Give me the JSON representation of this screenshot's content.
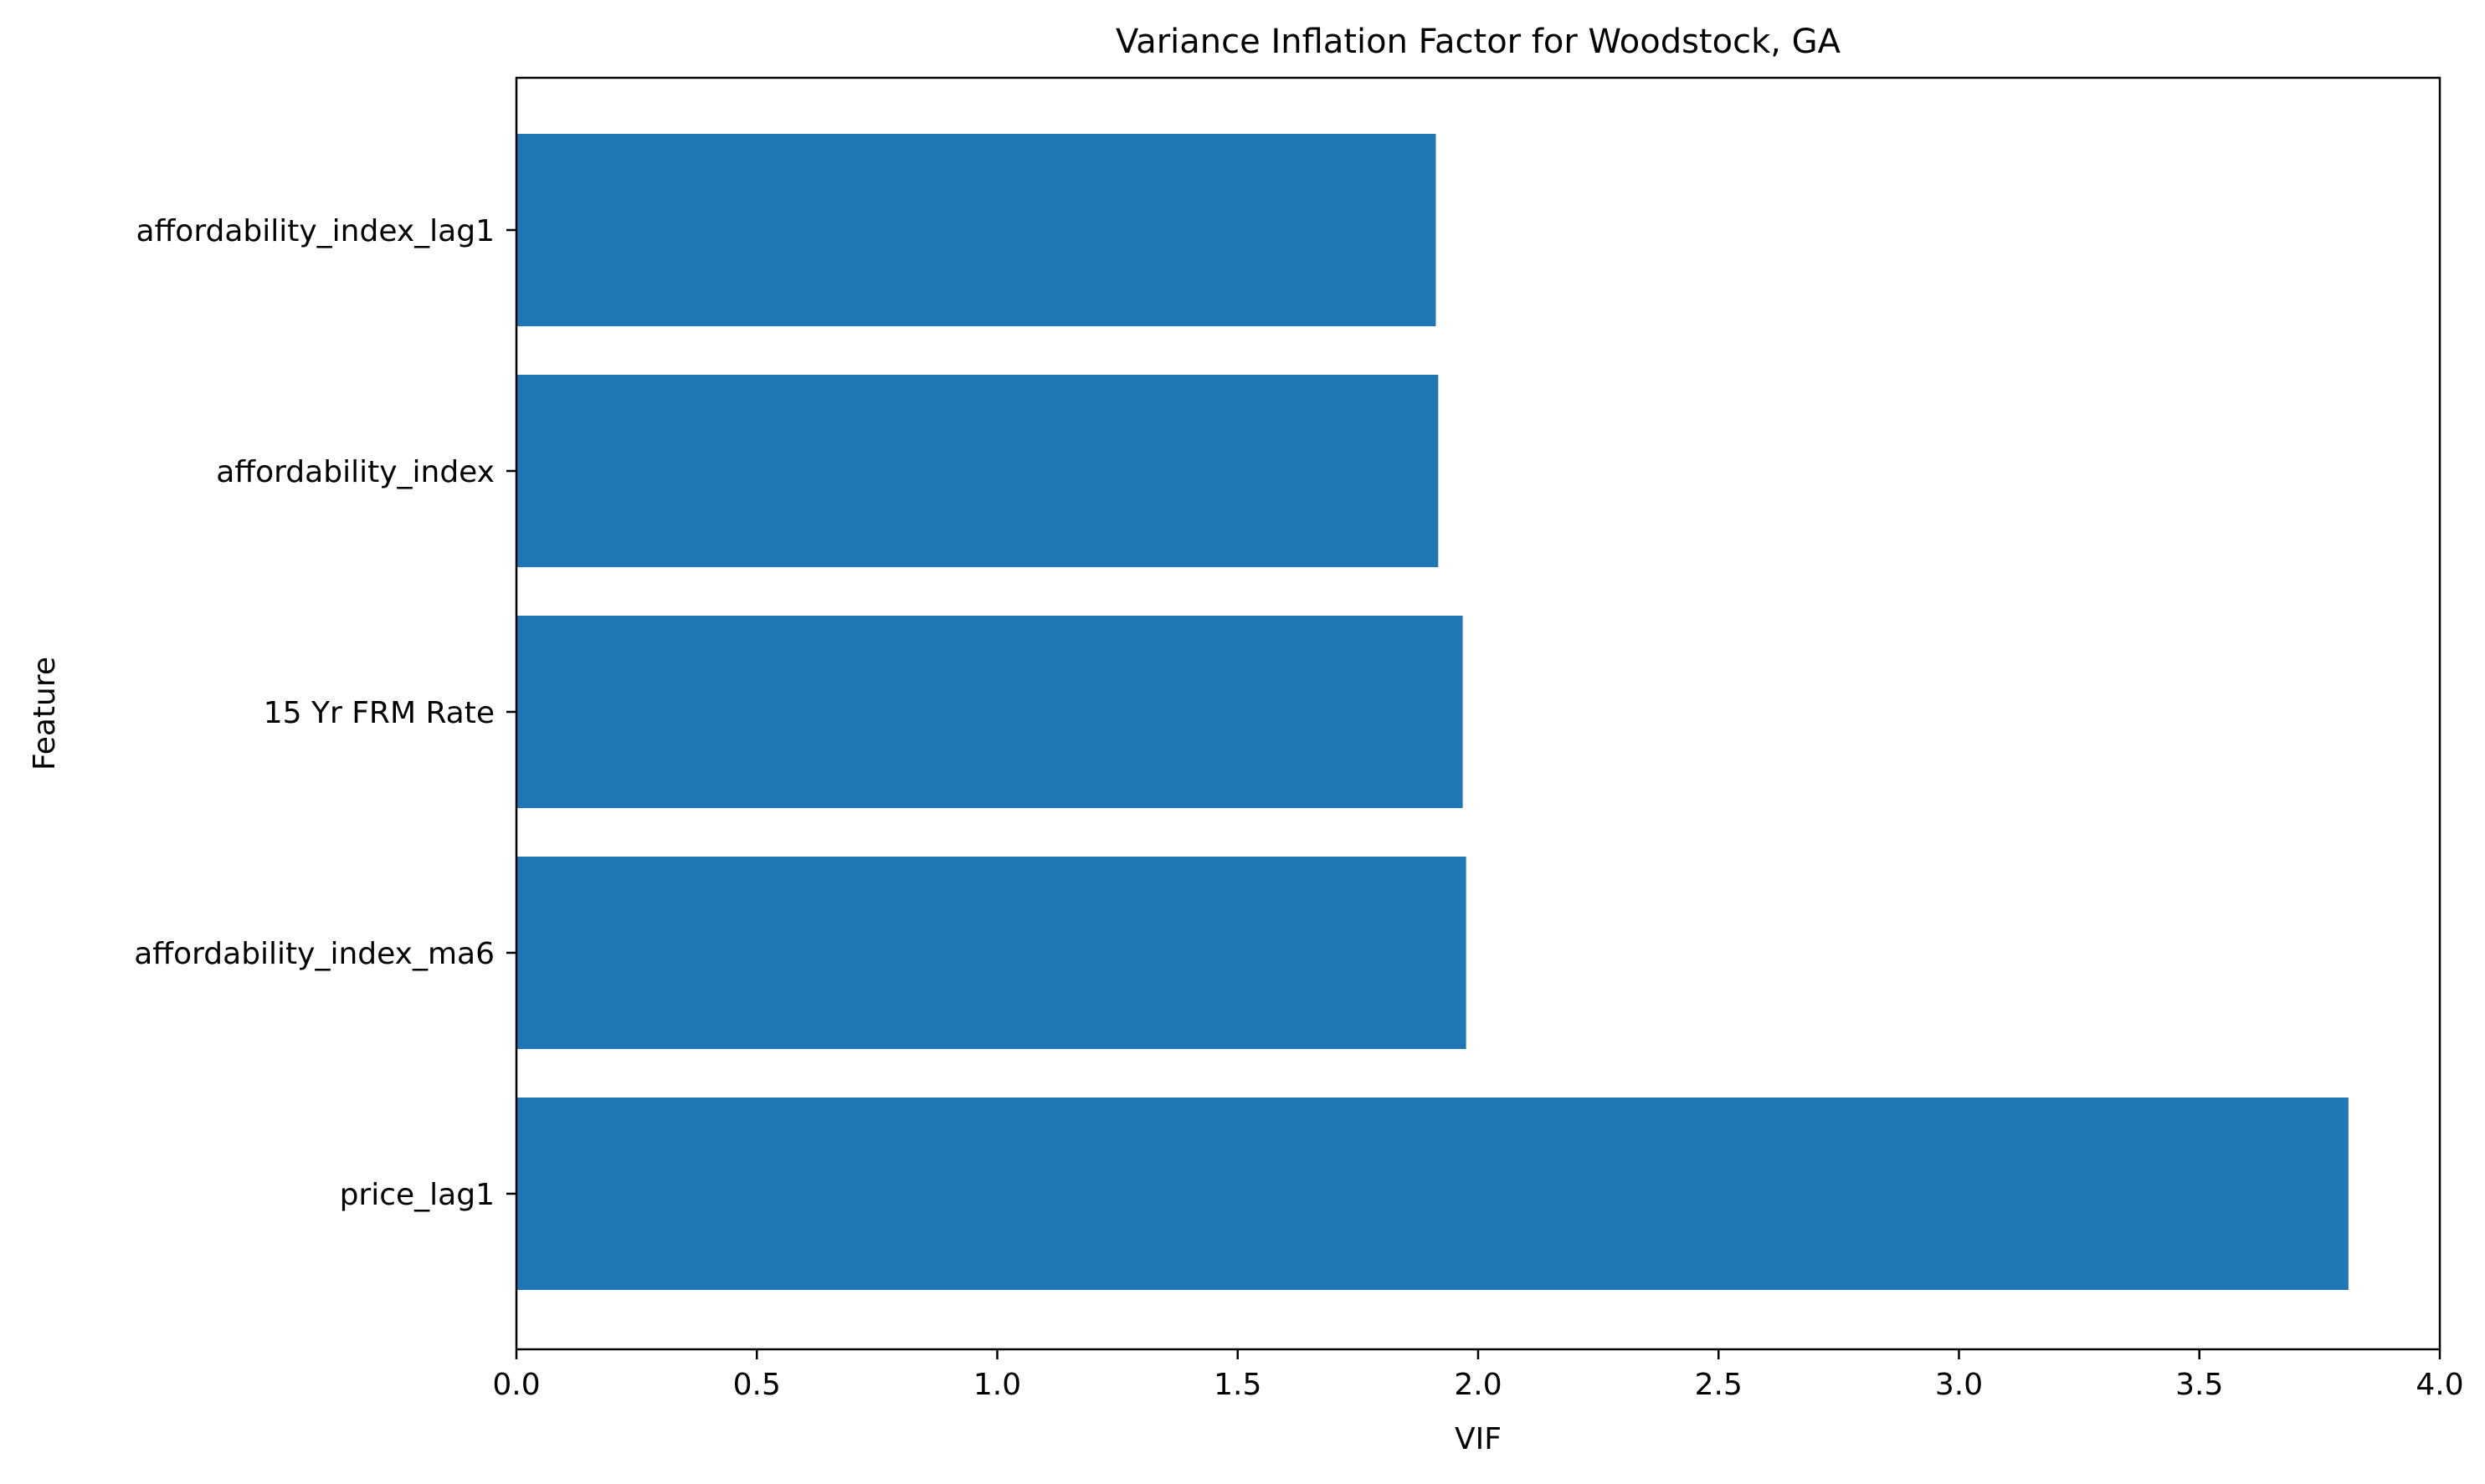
{
  "chart_data": {
    "type": "bar",
    "orientation": "horizontal",
    "title": "Variance Inflation Factor for Woodstock, GA",
    "xlabel": "VIF",
    "ylabel": "Feature",
    "categories": [
      "price_lag1",
      "affordability_index_ma6",
      "15 Yr FRM Rate",
      "affordability_index",
      "affordability_index_lag1"
    ],
    "values": [
      3.81,
      1.975,
      1.968,
      1.917,
      1.912
    ],
    "xlim": [
      0,
      4.0
    ],
    "xticks": [
      0.0,
      0.5,
      1.0,
      1.5,
      2.0,
      2.5,
      3.0,
      3.5,
      4.0
    ],
    "xtick_labels": [
      "0.0",
      "0.5",
      "1.0",
      "1.5",
      "2.0",
      "2.5",
      "3.0",
      "3.5",
      "4.0"
    ],
    "bar_color": "#1f77b4",
    "grid": false
  }
}
